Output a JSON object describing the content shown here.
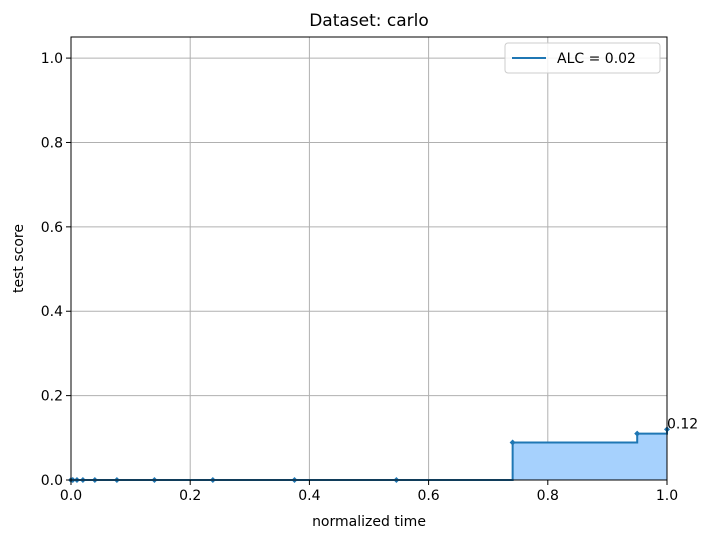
{
  "chart_data": {
    "type": "area",
    "title": "Dataset: carlo",
    "xlabel": "normalized time",
    "ylabel": "test score",
    "xlim": [
      0,
      1
    ],
    "ylim": [
      0,
      1.05
    ],
    "xticks": [
      "0.0",
      "0.2",
      "0.4",
      "0.6",
      "0.8",
      "1.0"
    ],
    "yticks": [
      "0.0",
      "0.2",
      "0.4",
      "0.6",
      "0.8",
      "1.0"
    ],
    "grid": true,
    "legend_position": "top-right",
    "series": [
      {
        "name": "ALC = 0.02",
        "drawstyle": "steps-post",
        "color": "#1f77b4",
        "fill_color": "#a6d1fd",
        "x": [
          0.0,
          0.003,
          0.01,
          0.02,
          0.04,
          0.077,
          0.14,
          0.238,
          0.375,
          0.546,
          0.741,
          0.95,
          1.0
        ],
        "y": [
          0.0,
          0.0,
          0.0,
          0.0,
          0.0,
          0.0,
          0.0,
          0.0,
          0.0,
          0.0,
          0.089,
          0.11,
          0.12
        ]
      }
    ],
    "annotations": [
      {
        "x": 1.0,
        "y": 0.12,
        "text": "0.12"
      }
    ]
  }
}
